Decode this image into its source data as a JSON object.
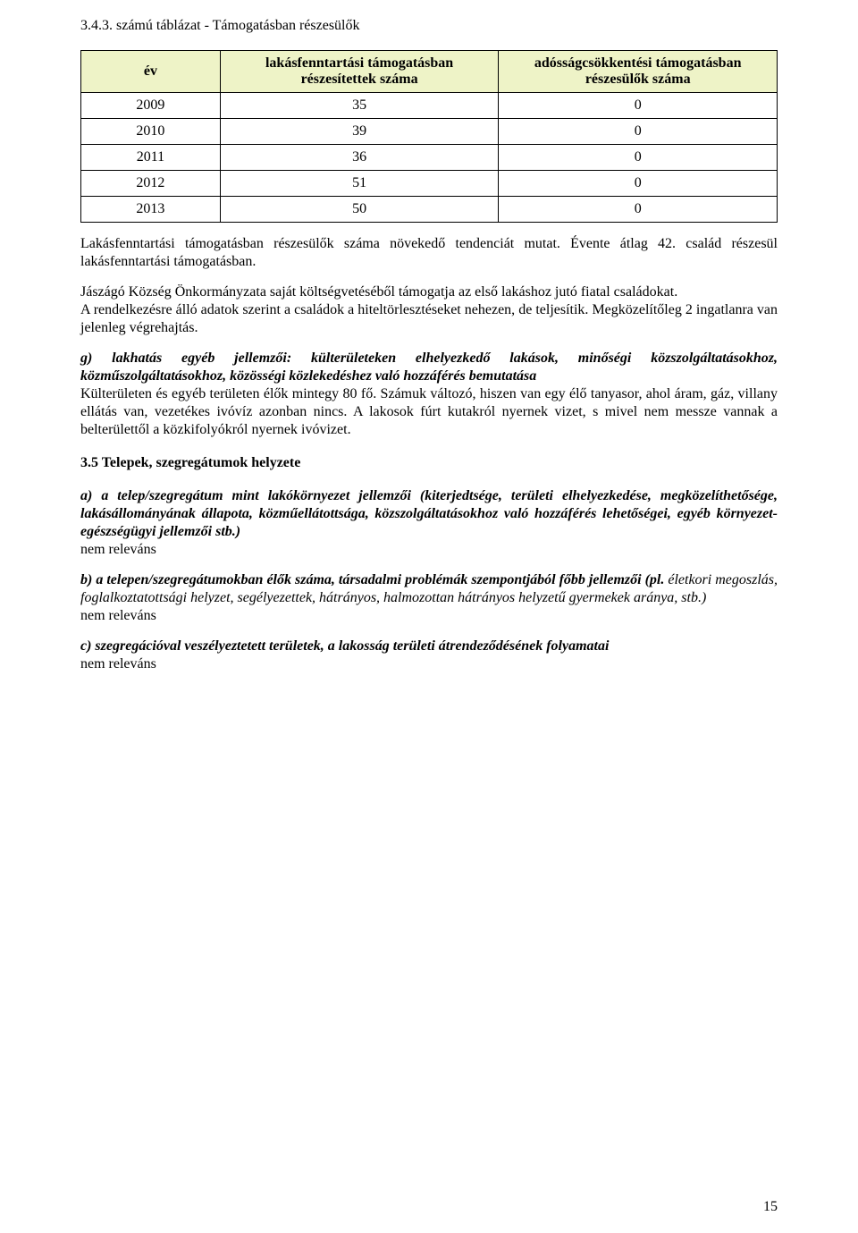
{
  "title": "3.4.3. számú táblázat - Támogatásban részesülők",
  "table": {
    "header_bg": "background:#eef3c7;",
    "col1": "év",
    "col2": "lakásfenntartási támogatásban részesítettek száma",
    "col3": "adósságcsökkentési támogatásban részesülők száma",
    "rows": [
      {
        "y": "2009",
        "a": "35",
        "b": "0"
      },
      {
        "y": "2010",
        "a": "39",
        "b": "0"
      },
      {
        "y": "2011",
        "a": "36",
        "b": "0"
      },
      {
        "y": "2012",
        "a": "51",
        "b": "0"
      },
      {
        "y": "2013",
        "a": "50",
        "b": "0"
      }
    ]
  },
  "p1": "Lakásfenntartási támogatásban részesülők száma növekedő tendenciát mutat. Évente átlag 42. család részesül lakásfenntartási támogatásban.",
  "p2a": "Jászágó Község Önkormányzata saját költségvetéséből támogatja az első lakáshoz jutó fiatal családokat.",
  "p2b": "A rendelkezésre álló adatok szerint a családok a hiteltörlesztéseket nehezen, de teljesítik. Megközelítőleg 2 ingatlanra van jelenleg végrehajtás.",
  "g_heading": "g) lakhatás egyéb jellemzői: külterületeken elhelyezkedő lakások, minőségi közszolgáltatásokhoz, közműszolgáltatásokhoz, közösségi közlekedéshez való hozzáférés bemutatása",
  "g_body": "Külterületen és egyéb területen élők mintegy 80 fő. Számuk változó, hiszen van egy élő tanyasor, ahol áram, gáz, villany ellátás van, vezetékes ivóvíz azonban nincs. A lakosok fúrt kutakról nyernek vizet, s mivel nem messze vannak a belterülettől a közkifolyókról nyernek ivóvizet.",
  "sec35": "3.5 Telepek, szegregátumok helyzete",
  "a_h": "a) a telep/szegregátum mint lakókörnyezet jellemzői (kiterjedtsége, területi elhelyezkedése, megközelíthetősége, lakásállományának állapota, közműellátottsága, közszolgáltatásokhoz való hozzáférés lehetőségei, egyéb környezet-egészségügyi jellemzői stb.)",
  "nr": "nem releváns",
  "b_h1": "b) a telepen/szegregátumokban élők száma, társadalmi problémák szempontjából főbb jellemzői (pl.",
  "b_h2": " életkori megoszlás, foglalkoztatottsági helyzet, segélyezettek, hátrányos, halmozottan hátrányos helyzetű gyermekek aránya, stb.)",
  "c_h": "c) szegregációval veszélyeztetett területek, a lakosság területi átrendeződésének folyamatai",
  "page": "15"
}
